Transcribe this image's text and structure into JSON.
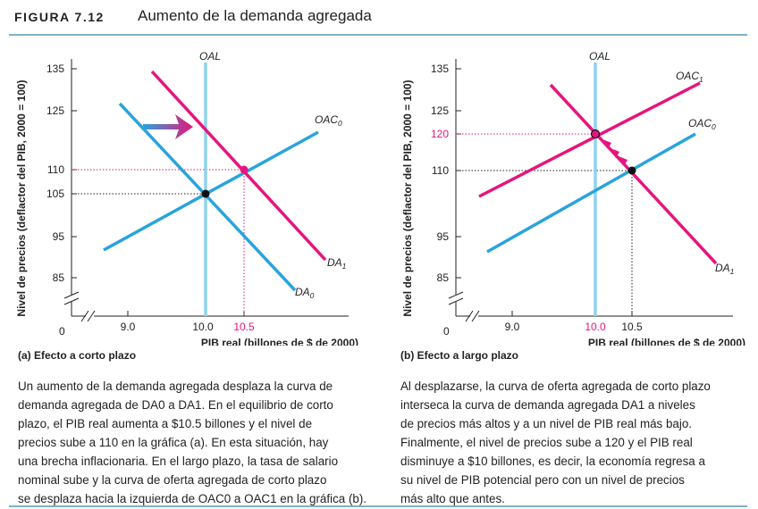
{
  "figure": {
    "number": "FIGURA 7.12",
    "title": "Aumento de la demanda agregada"
  },
  "colors": {
    "blue_curve": "#29a3dc",
    "magenta_curve": "#e5157e",
    "oal_line": "#8fd3ef",
    "rule": "#7fb0c8",
    "point": "#111111"
  },
  "panels": [
    {
      "id": "a",
      "caption": "(a) Efecto a corto plazo",
      "ylabel": "Nivel de precios (deflactor del PIB, 2000 = 100)",
      "xlabel": "PIB real (billones de $ de 2000)",
      "origin_label": "0",
      "y_ticks": [
        "135",
        "125",
        "110",
        "105",
        "95",
        "85"
      ],
      "x_ticks": [
        "9.0",
        "10.0",
        "10.5"
      ],
      "curve_labels": {
        "oal": "OAL",
        "oac0": "OAC",
        "oac0_sub": "0",
        "da0": "DA",
        "da0_sub": "0",
        "da1": "DA",
        "da1_sub": "1"
      },
      "text": [
        "Un aumento de la demanda agregada desplaza la curva de",
        "demanda agregada de DA0 a DA1. En el equilibrio de corto",
        "plazo, el PIB real aumenta a $10.5 billones y el nivel de",
        "precios sube a 110 en la gráfica (a). En esta situación, hay",
        "una brecha inflacionaria. En el largo plazo, la tasa de salario",
        "nominal sube y la curva de oferta agregada de corto plazo",
        "se desplaza hacia la izquierda de OAC0 a OAC1 en la gráfica (b)."
      ]
    },
    {
      "id": "b",
      "caption": "(b) Efecto a largo plazo",
      "ylabel": "Nivel de precios (deflactor del PIB, 2000 = 100)",
      "xlabel": "PIB real (billones de $ de 2000)",
      "origin_label": "0",
      "y_ticks": [
        "135",
        "125",
        "120",
        "110",
        "95",
        "85"
      ],
      "x_ticks": [
        "9.0",
        "10.0",
        "10.5"
      ],
      "curve_labels": {
        "oal": "OAL",
        "oac1": "OAC",
        "oac1_sub": "1",
        "oac0": "OAC",
        "oac0_sub": "0",
        "da1": "DA",
        "da1_sub": "1"
      },
      "text": [
        "Al desplazarse, la curva de oferta agregada de corto plazo",
        "interseca la curva de demanda agregada DA1 a niveles",
        "de precios más altos y a un nivel de PIB real más bajo.",
        "Finalmente, el nivel de precios sube a 120 y el PIB real",
        "disminuye a $10 billones, es decir, la economía regresa a",
        "su nivel de PIB potencial pero con un nivel de precios",
        "más alto que antes."
      ]
    }
  ],
  "chart_data": [
    {
      "type": "line",
      "panel": "a",
      "xlabel": "PIB real (billones de $ de 2000)",
      "ylabel": "Nivel de precios (deflactor del PIB, 2000 = 100)",
      "x_ticks": [
        9.0,
        10.0,
        10.5
      ],
      "y_ticks": [
        85,
        95,
        105,
        110,
        125,
        135
      ],
      "xlim": [
        8.2,
        11.5
      ],
      "ylim": [
        80,
        138
      ],
      "series": [
        {
          "name": "OAL",
          "x": [
            10.0,
            10.0
          ],
          "y": [
            137,
            80
          ]
        },
        {
          "name": "OAC0",
          "x": [
            8.6,
            11.5
          ],
          "y": [
            92,
            122
          ]
        },
        {
          "name": "DA0",
          "x": [
            8.85,
            11.2
          ],
          "y": [
            126,
            81
          ]
        },
        {
          "name": "DA1",
          "x": [
            9.3,
            11.75
          ],
          "y": [
            134,
            89
          ]
        }
      ],
      "points": [
        {
          "x": 10.0,
          "y": 105,
          "label": "equilibrio inicial"
        },
        {
          "x": 10.5,
          "y": 110,
          "label": "equilibrio corto plazo"
        }
      ],
      "annotations": [
        "flecha de desplazamiento DA0 → DA1"
      ]
    },
    {
      "type": "line",
      "panel": "b",
      "xlabel": "PIB real (billones de $ de 2000)",
      "ylabel": "Nivel de precios (deflactor del PIB, 2000 = 100)",
      "x_ticks": [
        9.0,
        10.0,
        10.5
      ],
      "y_ticks": [
        85,
        95,
        110,
        120,
        125,
        135
      ],
      "xlim": [
        8.2,
        11.5
      ],
      "ylim": [
        80,
        138
      ],
      "series": [
        {
          "name": "OAL",
          "x": [
            10.0,
            10.0
          ],
          "y": [
            137,
            80
          ]
        },
        {
          "name": "OAC1",
          "x": [
            8.85,
            11.4
          ],
          "y": [
            112,
            131
          ]
        },
        {
          "name": "OAC0",
          "x": [
            9.1,
            11.4
          ],
          "y": [
            91,
            118
          ]
        },
        {
          "name": "DA1",
          "x": [
            9.5,
            11.65
          ],
          "y": [
            131,
            88
          ]
        }
      ],
      "points": [
        {
          "x": 10.5,
          "y": 110,
          "label": "equilibrio corto plazo"
        },
        {
          "x": 10.0,
          "y": 120,
          "label": "equilibrio largo plazo"
        }
      ],
      "annotations": [
        "flechas a lo largo de DA1 de (10.5,110) a (10.0,120)"
      ]
    }
  ]
}
